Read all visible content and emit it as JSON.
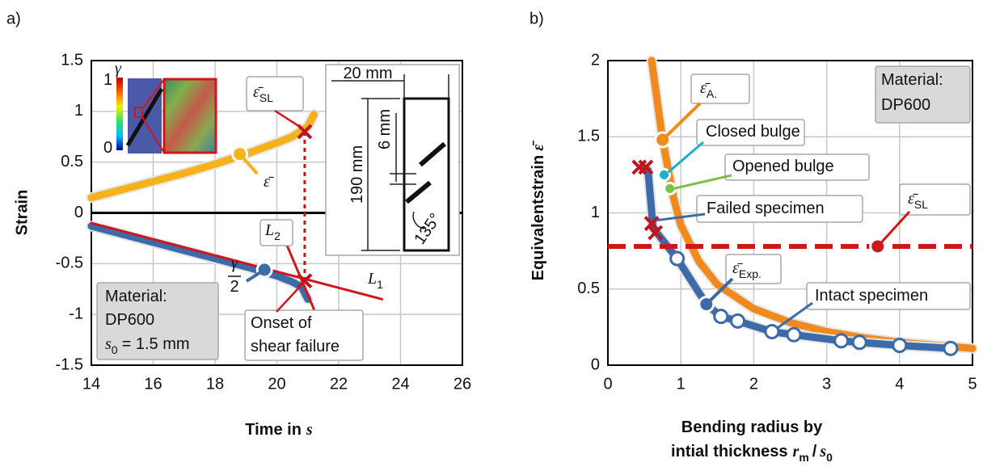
{
  "chart_data": [
    {
      "type": "line",
      "panel": "a)",
      "y_label": "Strain",
      "x_label": {
        "text": "Time in",
        "var": "s"
      },
      "xlim": [
        14,
        26
      ],
      "xticks": [
        14,
        16,
        18,
        20,
        22,
        24,
        26
      ],
      "ylim": [
        -1.5,
        1.5
      ],
      "yticks": [
        -1.5,
        -1,
        -0.5,
        0,
        0.5,
        1,
        1.5
      ],
      "grid": true,
      "series": [
        {
          "name": "ε̄",
          "color": "#f5b21b",
          "x": [
            14,
            15,
            16,
            17,
            18,
            19,
            20,
            20.5,
            21,
            21.2
          ],
          "values": [
            0.15,
            0.23,
            0.31,
            0.39,
            0.48,
            0.58,
            0.69,
            0.75,
            0.85,
            0.97
          ],
          "marker": [
            18.8,
            0.58
          ]
        },
        {
          "name": {
            "num": "γ",
            "den": "2"
          },
          "color": "#3d6aa8",
          "x": [
            14,
            15,
            16,
            17,
            18,
            19,
            20,
            20.5,
            20.8,
            21
          ],
          "values": [
            -0.13,
            -0.21,
            -0.29,
            -0.37,
            -0.45,
            -0.53,
            -0.62,
            -0.68,
            -0.73,
            -0.85
          ],
          "marker": [
            19.6,
            -0.56
          ]
        },
        {
          "name": {
            "symbol": "L",
            "sub": "1"
          },
          "color": "#d0161d",
          "x": [
            14,
            23.4
          ],
          "values": [
            -0.1,
            -0.85
          ]
        },
        {
          "name": {
            "symbol": "L",
            "sub": "2"
          },
          "color": "#d0161d",
          "x": [
            20.3,
            21.2
          ],
          "values": [
            -0.3,
            -0.95
          ]
        }
      ],
      "failure_points": {
        "color": "#c0151d",
        "x": [
          20.9,
          20.9
        ],
        "values": [
          0.8,
          -0.67
        ]
      },
      "annotations": {
        "strain_limit": {
          "symbol": "ε̄",
          "sub": "SL"
        },
        "onset": [
          "Onset of",
          "shear failure"
        ],
        "material": [
          "Material:",
          "DP600"
        ],
        "thickness": {
          "symbol": "s",
          "sub": "0",
          "text": "= 1.5 mm"
        }
      },
      "inset": {
        "colorbar": {
          "max": "1",
          "min": "0",
          "symbol": "γ"
        },
        "specimen": {
          "width": "20 mm",
          "length": "190 mm",
          "gap": "6 mm",
          "angle": "135°"
        }
      }
    },
    {
      "type": "line",
      "panel": "b)",
      "y_label": {
        "text": "Equivalentstrain",
        "symbol": "ε̄"
      },
      "x_label": {
        "line1": "Bending radius by",
        "line2": "intial thickness",
        "r": "r",
        "r_sub": "m",
        "slash": "/",
        "s": "s",
        "s_sub": "0"
      },
      "xlim": [
        0,
        5
      ],
      "xticks": [
        0,
        1,
        2,
        3,
        4,
        5
      ],
      "ylim": [
        0,
        2
      ],
      "yticks": [
        0,
        0.5,
        1,
        1.5,
        2
      ],
      "grid": true,
      "series": [
        {
          "name": {
            "symbol": "ε̄",
            "sub": "A."
          },
          "color": "#f08a1c",
          "x": [
            0.6,
            0.75,
            0.9,
            1,
            1.25,
            1.5,
            2,
            2.5,
            3,
            3.5,
            4,
            4.5,
            5
          ],
          "values": [
            2,
            1.48,
            1.1,
            0.92,
            0.68,
            0.53,
            0.37,
            0.28,
            0.22,
            0.18,
            0.15,
            0.13,
            0.11
          ],
          "marker": [
            0.75,
            1.48
          ]
        },
        {
          "name": {
            "symbol": "ε̄",
            "sub": "Exp."
          },
          "color": "#3d6aa8",
          "x": [
            0.48,
            0.55,
            0.62,
            0.95,
            1.35,
            1.55,
            1.78,
            2.25,
            2.55,
            3.2,
            3.45,
            4,
            4.7
          ],
          "values": [
            1.3,
            1.28,
            0.9,
            0.7,
            0.4,
            0.32,
            0.29,
            0.22,
            0.2,
            0.16,
            0.15,
            0.13,
            0.11
          ],
          "marker": [
            1.35,
            0.4
          ]
        },
        {
          "name": {
            "symbol": "ε̄",
            "sub": "SL"
          },
          "color": "#d0161d",
          "dashed": true,
          "x": [
            0,
            5
          ],
          "values": [
            0.78,
            0.78
          ],
          "marker": [
            3.7,
            0.78
          ]
        }
      ],
      "points": [
        {
          "label": "Closed bulge",
          "color": "#19b0c8",
          "shape": "dot",
          "x": [
            0.77
          ],
          "values": [
            1.25
          ]
        },
        {
          "label": "Opened bulge",
          "color": "#7cc04a",
          "shape": "dot",
          "x": [
            0.85
          ],
          "values": [
            1.16
          ]
        },
        {
          "label": "Failed specimen",
          "color": "#c0151d",
          "shape": "cross",
          "x": [
            0.43,
            0.52,
            0.6,
            0.65
          ],
          "values": [
            1.3,
            1.3,
            0.93,
            0.87
          ]
        },
        {
          "label": "Intact specimen",
          "color": "#ffffff",
          "shape": "circle",
          "x": [
            0.95,
            1.55,
            1.78,
            2.25,
            2.55,
            3.2,
            3.45,
            4,
            4.7
          ],
          "values": [
            0.7,
            0.32,
            0.29,
            0.22,
            0.2,
            0.16,
            0.15,
            0.13,
            0.11
          ]
        }
      ],
      "annotations": {
        "material": [
          "Material:",
          "DP600"
        ]
      }
    }
  ]
}
